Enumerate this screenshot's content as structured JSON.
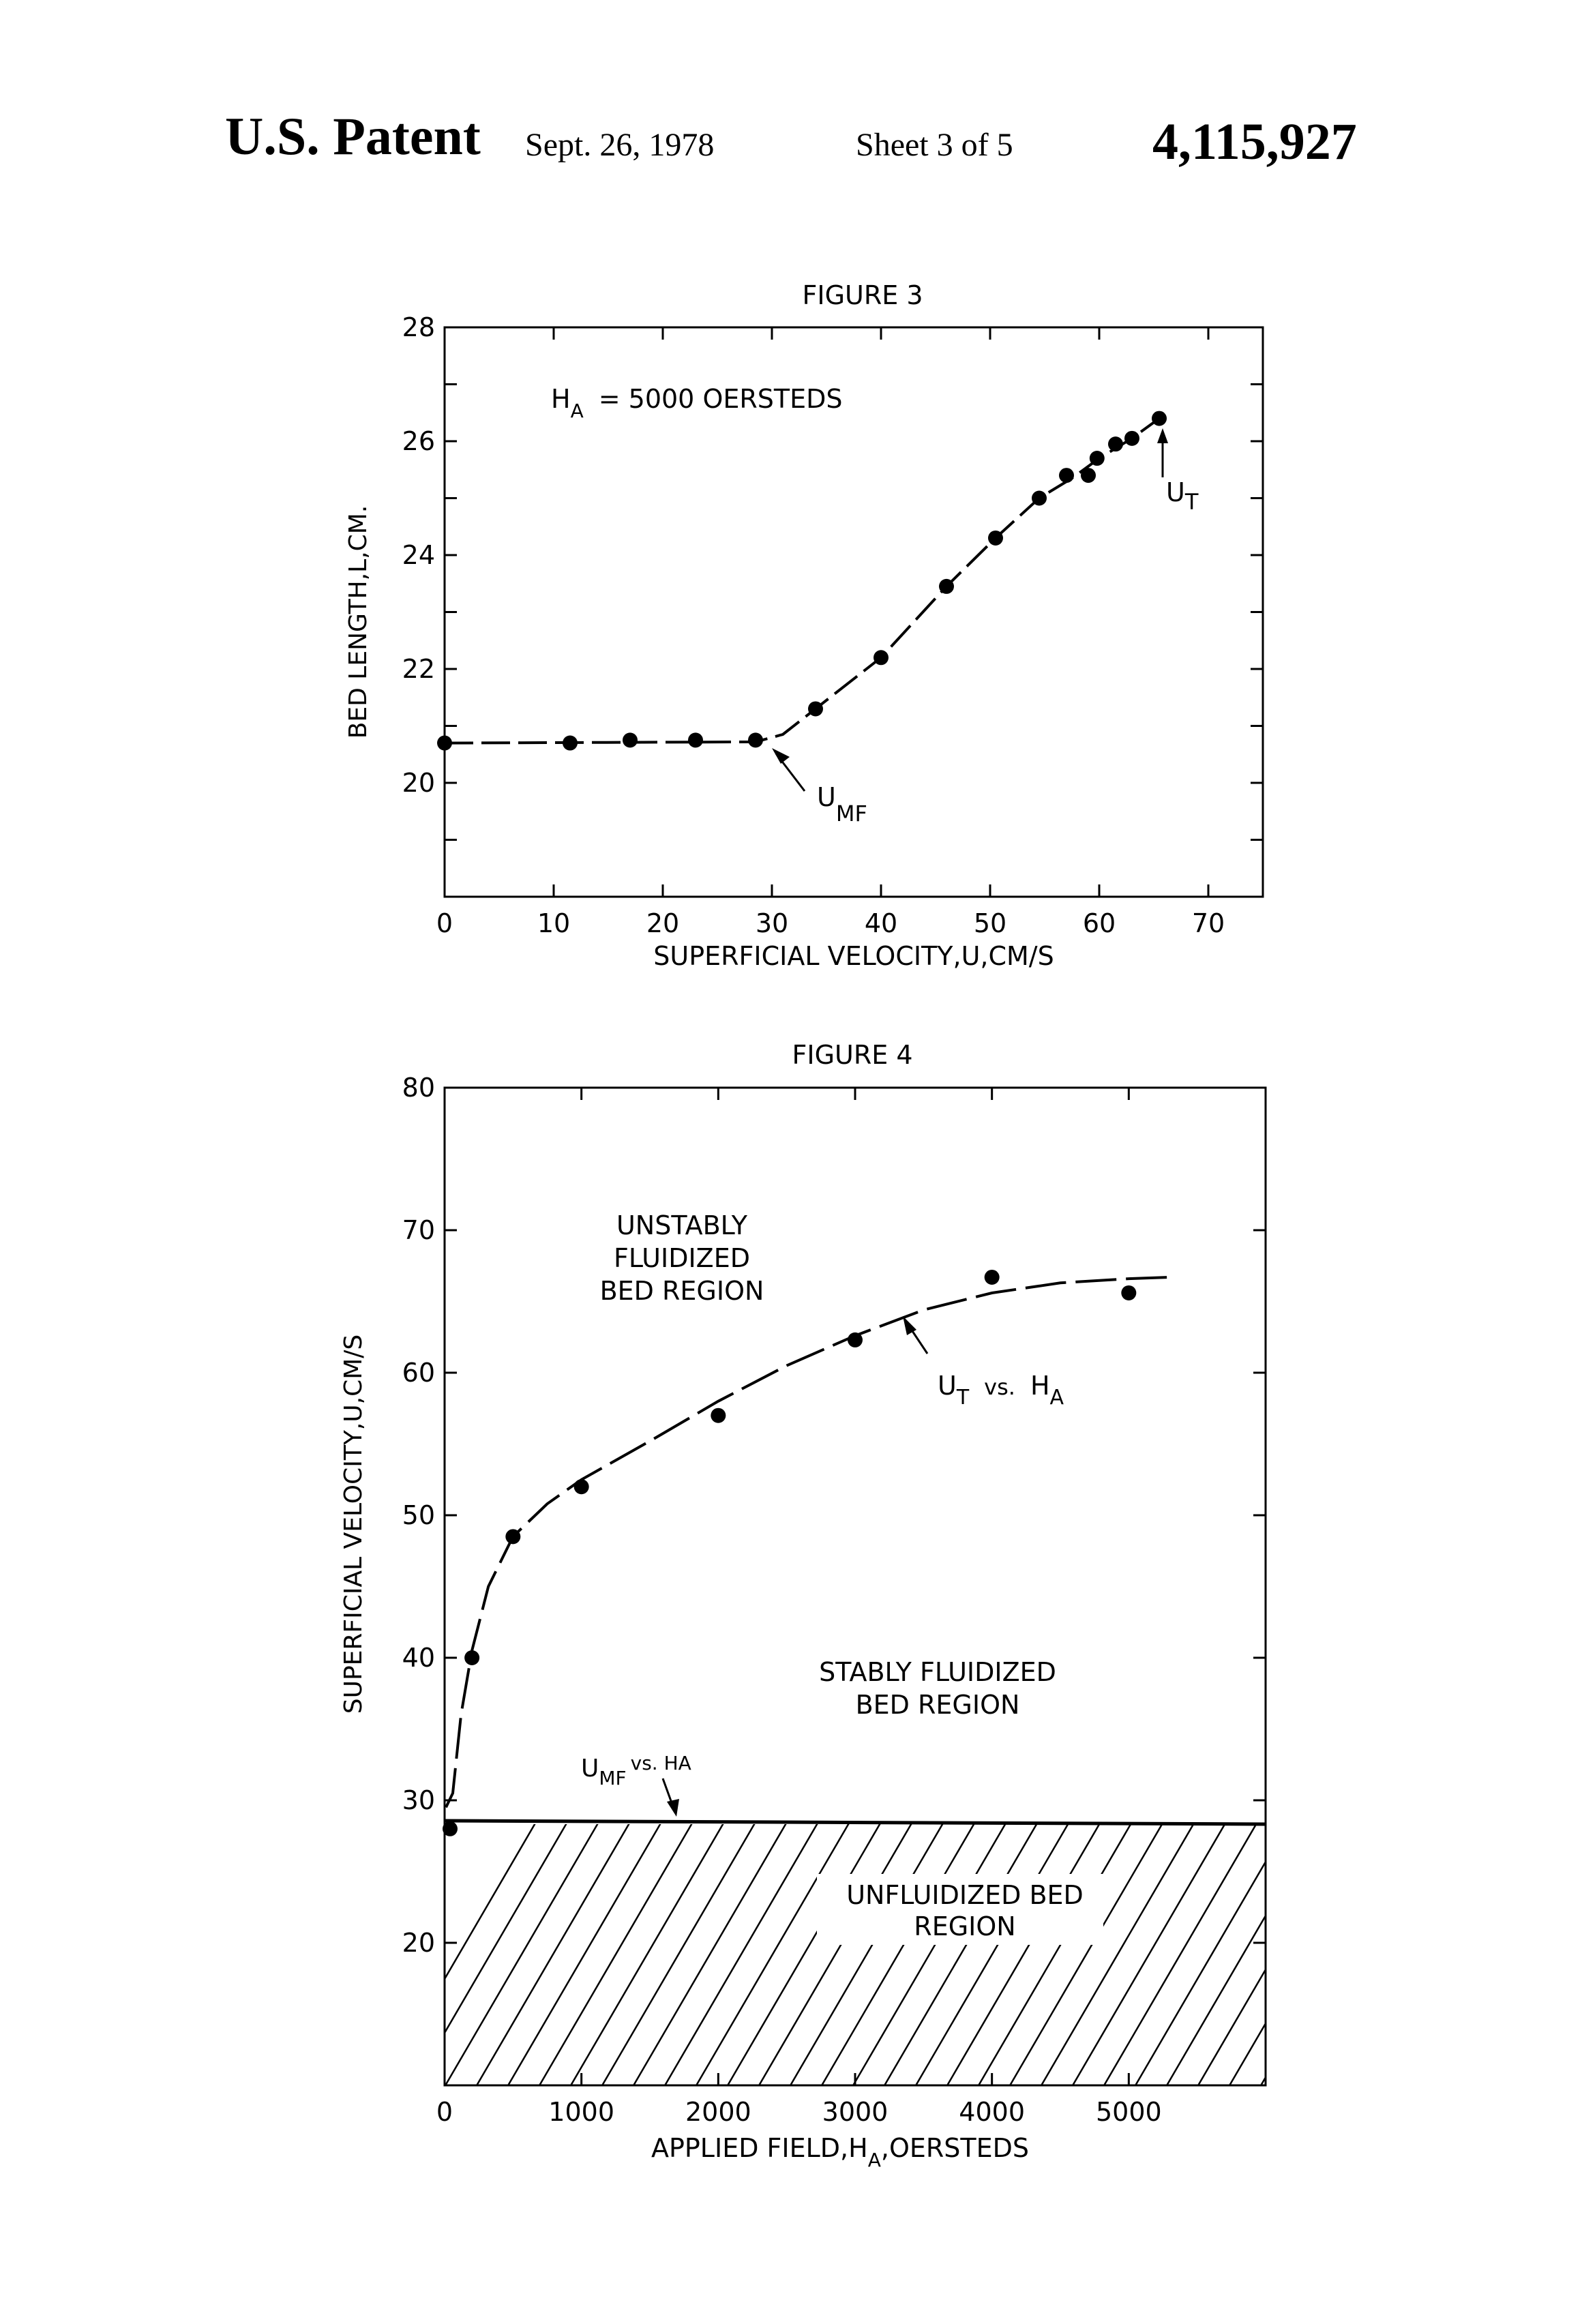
{
  "header": {
    "patent": "U.S. Patent",
    "date": "Sept. 26, 1978",
    "sheet": "Sheet 3 of 5",
    "number": "4,115,927"
  },
  "colors": {
    "ink": "#000000",
    "paper": "#ffffff"
  },
  "chart_data": [
    {
      "type": "line",
      "title": "FIGURE 3",
      "xlabel": "SUPERFICIAL VELOCITY,U,CM/S",
      "ylabel": "BED LENGTH,L,CM.",
      "xlim": [
        0,
        75
      ],
      "ylim": [
        18,
        28
      ],
      "xticks": [
        "0",
        "10",
        "20",
        "30",
        "40",
        "50",
        "60",
        "70"
      ],
      "yticks": [
        "20",
        "22",
        "24",
        "26",
        "28"
      ],
      "series": [
        {
          "x": [
            0,
            11.5,
            17,
            23,
            28.5,
            34,
            40,
            46,
            50.5,
            54.5,
            57,
            59,
            59.8,
            61.5,
            63,
            65.5
          ],
          "y": [
            20.7,
            20.7,
            20.75,
            20.75,
            20.75,
            21.3,
            22.2,
            23.45,
            24.3,
            25.0,
            25.4,
            25.4,
            25.7,
            25.95,
            26.05,
            26.4
          ]
        }
      ],
      "annotations": {
        "condition_main": "H",
        "condition_sub": "A",
        "condition_rest": "= 5000 OERSTEDS",
        "umf_main": "U",
        "umf_sub": "MF",
        "ut_main": "U",
        "ut_sub": "T"
      },
      "grid": false,
      "legend": "none"
    },
    {
      "type": "line",
      "title": "FIGURE 4",
      "xlabel_main": "APPLIED FIELD,H",
      "xlabel_sub": "A",
      "xlabel_rest": ",OERSTEDS",
      "ylabel": "SUPERFICIAL VELOCITY,U,CM/S",
      "xlim": [
        0,
        6000
      ],
      "ylim": [
        10,
        80
      ],
      "xticks": [
        "0",
        "1000",
        "2000",
        "3000",
        "4000",
        "5000"
      ],
      "yticks": [
        "20",
        "30",
        "40",
        "50",
        "60",
        "70",
        "80"
      ],
      "series": [
        {
          "x": [
            0,
            200,
            500,
            1000,
            2000,
            3000,
            4000,
            5000
          ],
          "y": [
            28,
            40,
            48.5,
            52,
            57,
            62.3,
            66.7,
            65.6
          ]
        }
      ],
      "annotations": {
        "region_unstable": [
          "UNSTABLY",
          "FLUIDIZED",
          "BED REGION"
        ],
        "region_stable": [
          "STABLY FLUIDIZED",
          "BED REGION"
        ],
        "region_unfluidized": [
          "UNFLUIDIZED BED",
          "REGION"
        ],
        "ut_main": "U",
        "ut_sub": "T",
        "ut_vs": "vs.",
        "ut_ha_main": "H",
        "ut_ha_sub": "A",
        "umf_main": "U",
        "umf_sub": "MF",
        "umf_rest": "vs. HA"
      },
      "grid": false,
      "legend": "none"
    }
  ]
}
